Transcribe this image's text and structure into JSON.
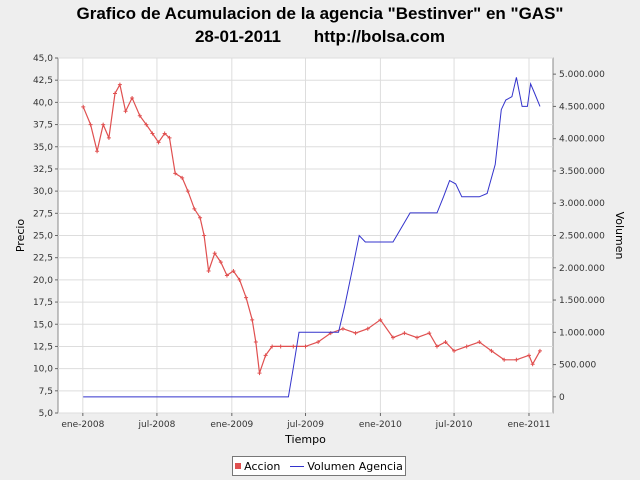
{
  "chart_data": {
    "type": "line",
    "title": "Grafico de Acumulacion de la agencia \"Bestinver\" en \"GAS\"",
    "subtitle_date": "28-01-2011",
    "subtitle_url": "http://bolsa.com",
    "xlabel": "Tiempo",
    "ylabel_left": "Precio",
    "ylabel_right": "Volumen",
    "x_ticks": [
      "ene-2008",
      "jul-2008",
      "ene-2009",
      "jul-2009",
      "ene-2010",
      "jul-2010",
      "ene-2011"
    ],
    "y_left_ticks": [
      "5,0",
      "7,5",
      "10,0",
      "12,5",
      "15,0",
      "17,5",
      "20,0",
      "22,5",
      "25,0",
      "27,5",
      "30,0",
      "32,5",
      "35,0",
      "37,5",
      "40,0",
      "42,5",
      "45,0"
    ],
    "y_right_ticks": [
      "0",
      "500.000",
      "1.000.000",
      "1.500.000",
      "2.000.000",
      "2.500.000",
      "3.000.000",
      "3.500.000",
      "4.000.000",
      "4.500.000",
      "5.000.000"
    ],
    "ylim_left": [
      5,
      45
    ],
    "ylim_right": [
      -250000,
      5250000
    ],
    "xlim": [
      "2007-11-01",
      "2011-03-01"
    ],
    "grid": true,
    "legend_position": "bottom",
    "series": [
      {
        "name": "Accion",
        "axis": "left",
        "color": "#e05050",
        "marker": "plus",
        "points": [
          [
            "2008-01-02",
            39.5
          ],
          [
            "2008-01-20",
            37.5
          ],
          [
            "2008-02-05",
            34.5
          ],
          [
            "2008-02-20",
            37.5
          ],
          [
            "2008-03-05",
            36.0
          ],
          [
            "2008-03-20",
            41.0
          ],
          [
            "2008-04-01",
            42.0
          ],
          [
            "2008-04-15",
            39.0
          ],
          [
            "2008-05-01",
            40.5
          ],
          [
            "2008-05-20",
            38.5
          ],
          [
            "2008-06-05",
            37.5
          ],
          [
            "2008-06-20",
            36.5
          ],
          [
            "2008-07-05",
            35.5
          ],
          [
            "2008-07-20",
            36.5
          ],
          [
            "2008-08-01",
            36.0
          ],
          [
            "2008-08-15",
            32.0
          ],
          [
            "2008-09-01",
            31.5
          ],
          [
            "2008-09-15",
            30.0
          ],
          [
            "2008-10-01",
            28.0
          ],
          [
            "2008-10-15",
            27.0
          ],
          [
            "2008-10-25",
            25.0
          ],
          [
            "2008-11-05",
            21.0
          ],
          [
            "2008-11-20",
            23.0
          ],
          [
            "2008-12-05",
            22.0
          ],
          [
            "2008-12-20",
            20.5
          ],
          [
            "2009-01-05",
            21.0
          ],
          [
            "2009-01-20",
            20.0
          ],
          [
            "2009-02-05",
            18.0
          ],
          [
            "2009-02-20",
            15.5
          ],
          [
            "2009-03-01",
            13.0
          ],
          [
            "2009-03-10",
            9.5
          ],
          [
            "2009-03-25",
            11.5
          ],
          [
            "2009-04-10",
            12.5
          ],
          [
            "2009-05-01",
            12.5
          ],
          [
            "2009-06-01",
            12.5
          ],
          [
            "2009-07-01",
            12.5
          ],
          [
            "2009-08-01",
            13.0
          ],
          [
            "2009-09-01",
            14.0
          ],
          [
            "2009-10-01",
            14.5
          ],
          [
            "2009-11-01",
            14.0
          ],
          [
            "2009-12-01",
            14.5
          ],
          [
            "2010-01-01",
            15.5
          ],
          [
            "2010-02-01",
            13.5
          ],
          [
            "2010-03-01",
            14.0
          ],
          [
            "2010-04-01",
            13.5
          ],
          [
            "2010-05-01",
            14.0
          ],
          [
            "2010-05-20",
            12.5
          ],
          [
            "2010-06-10",
            13.0
          ],
          [
            "2010-07-01",
            12.0
          ],
          [
            "2010-08-01",
            12.5
          ],
          [
            "2010-09-01",
            13.0
          ],
          [
            "2010-10-01",
            12.0
          ],
          [
            "2010-11-01",
            11.0
          ],
          [
            "2010-12-01",
            11.0
          ],
          [
            "2011-01-01",
            11.5
          ],
          [
            "2011-01-10",
            10.5
          ],
          [
            "2011-01-28",
            12.0
          ]
        ]
      },
      {
        "name": "Volumen Agencia",
        "axis": "right",
        "color": "#3333cc",
        "marker": "none",
        "points": [
          [
            "2008-01-02",
            0
          ],
          [
            "2009-05-20",
            0
          ],
          [
            "2009-06-01",
            450000
          ],
          [
            "2009-06-15",
            1000000
          ],
          [
            "2009-07-15",
            1000000
          ],
          [
            "2009-09-20",
            1000000
          ],
          [
            "2009-10-05",
            1400000
          ],
          [
            "2009-10-25",
            2000000
          ],
          [
            "2009-11-10",
            2500000
          ],
          [
            "2009-11-25",
            2400000
          ],
          [
            "2010-02-01",
            2400000
          ],
          [
            "2010-03-01",
            2700000
          ],
          [
            "2010-03-15",
            2850000
          ],
          [
            "2010-05-20",
            2850000
          ],
          [
            "2010-06-05",
            3100000
          ],
          [
            "2010-06-20",
            3350000
          ],
          [
            "2010-07-05",
            3300000
          ],
          [
            "2010-07-20",
            3100000
          ],
          [
            "2010-09-01",
            3100000
          ],
          [
            "2010-09-20",
            3150000
          ],
          [
            "2010-10-10",
            3600000
          ],
          [
            "2010-10-25",
            4450000
          ],
          [
            "2010-11-05",
            4600000
          ],
          [
            "2010-11-20",
            4650000
          ],
          [
            "2010-12-01",
            4950000
          ],
          [
            "2010-12-15",
            4500000
          ],
          [
            "2010-12-28",
            4500000
          ],
          [
            "2011-01-05",
            4850000
          ],
          [
            "2011-01-15",
            4700000
          ],
          [
            "2011-01-28",
            4500000
          ]
        ]
      }
    ]
  }
}
